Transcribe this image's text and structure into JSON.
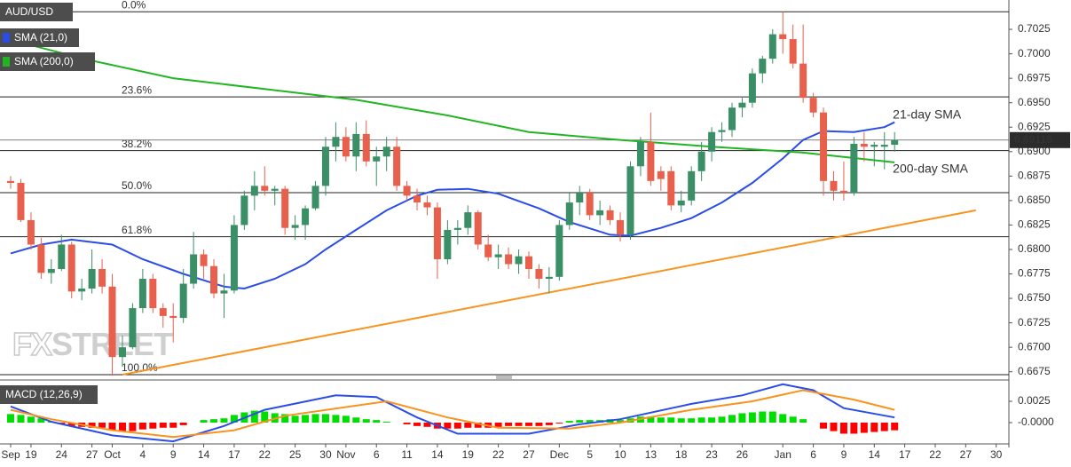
{
  "chart_data": {
    "type": "candlestick",
    "title": "AUD/USD",
    "xlim": [
      -1.05,
      98.25
    ],
    "xticks": [
      {
        "value": 0,
        "label": "Sep"
      },
      {
        "value": 2,
        "label": "19"
      },
      {
        "value": 5,
        "label": "24"
      },
      {
        "value": 8,
        "label": "27"
      },
      {
        "value": 10,
        "label": "Oct"
      },
      {
        "value": 13,
        "label": "4"
      },
      {
        "value": 16,
        "label": "9"
      },
      {
        "value": 19,
        "label": "14"
      },
      {
        "value": 22,
        "label": "17"
      },
      {
        "value": 25,
        "label": "22"
      },
      {
        "value": 28,
        "label": "25"
      },
      {
        "value": 31,
        "label": "30"
      },
      {
        "value": 33,
        "label": "Nov"
      },
      {
        "value": 36,
        "label": "6"
      },
      {
        "value": 39,
        "label": "11"
      },
      {
        "value": 42,
        "label": "14"
      },
      {
        "value": 45,
        "label": "19"
      },
      {
        "value": 48,
        "label": "22"
      },
      {
        "value": 51,
        "label": "27"
      },
      {
        "value": 54,
        "label": "Dec"
      },
      {
        "value": 57,
        "label": "5"
      },
      {
        "value": 60,
        "label": "10"
      },
      {
        "value": 63,
        "label": "13"
      },
      {
        "value": 66,
        "label": "18"
      },
      {
        "value": 69,
        "label": "23"
      },
      {
        "value": 72,
        "label": "26"
      },
      {
        "value": 76,
        "label": "Jan"
      },
      {
        "value": 79,
        "label": "6"
      },
      {
        "value": 82,
        "label": "9"
      },
      {
        "value": 85,
        "label": "14"
      },
      {
        "value": 88,
        "label": "17"
      },
      {
        "value": 91,
        "label": "22"
      },
      {
        "value": 94,
        "label": "27"
      },
      {
        "value": 97,
        "label": "30"
      }
    ],
    "ylim": [
      0.6672,
      0.7055
    ],
    "yticks": [
      0.6675,
      {
        "value": 0.67,
        "label": "0.6700"
      },
      0.6725,
      {
        "value": 0.675,
        "label": "0.6750"
      },
      0.6775,
      {
        "value": 0.68,
        "label": "0.6800"
      },
      0.6825,
      {
        "value": 0.685,
        "label": "0.6850"
      },
      0.6875,
      {
        "value": 0.69,
        "label": "0.6900"
      },
      0.6925,
      {
        "value": 0.695,
        "label": "0.6950"
      },
      0.6975,
      {
        "value": 0.7,
        "label": "0.7000"
      },
      0.7025
    ],
    "candles": {
      "up_color": "#3a8f66",
      "down_color": "#e8604c",
      "open": [
        0.687,
        0.6868,
        0.683,
        0.6805,
        0.6776,
        0.678,
        0.6805,
        0.6757,
        0.676,
        0.678,
        0.6762,
        0.669,
        0.67,
        0.674,
        0.677,
        0.674,
        0.6732,
        0.673,
        0.6765,
        0.6795,
        0.6783,
        0.6755,
        0.6758,
        0.6825,
        0.6855,
        0.6865,
        0.686,
        0.6862,
        0.6822,
        0.6825,
        0.6842,
        0.6865,
        0.6905,
        0.6915,
        0.6895,
        0.6918,
        0.689,
        0.6895,
        0.6905,
        0.6865,
        0.6855,
        0.6848,
        0.6843,
        0.679,
        0.682,
        0.6822,
        0.6838,
        0.6805,
        0.6792,
        0.6795,
        0.6785,
        0.6793,
        0.678,
        0.677,
        0.6772,
        0.6825,
        0.6848,
        0.6858,
        0.6835,
        0.684,
        0.683,
        0.6815,
        0.6885,
        0.691,
        0.688,
        0.688,
        0.6845,
        0.685,
        0.688,
        0.69,
        0.692,
        0.6922,
        0.6945,
        0.695,
        0.698,
        0.6995,
        0.702,
        0.7015,
        0.699,
        0.6955,
        0.694,
        0.687,
        0.686,
        0.6858,
        0.6908,
        0.6905,
        0.6905,
        0.6907
      ],
      "high": [
        0.6875,
        0.6872,
        0.6838,
        0.6812,
        0.679,
        0.6815,
        0.6808,
        0.677,
        0.68,
        0.679,
        0.6775,
        0.6712,
        0.6745,
        0.678,
        0.6775,
        0.6745,
        0.6745,
        0.678,
        0.6818,
        0.68,
        0.679,
        0.6775,
        0.6835,
        0.686,
        0.688,
        0.6885,
        0.6865,
        0.6865,
        0.6835,
        0.6845,
        0.687,
        0.6915,
        0.693,
        0.6925,
        0.693,
        0.6932,
        0.6905,
        0.6915,
        0.6915,
        0.687,
        0.6862,
        0.6855,
        0.6848,
        0.683,
        0.683,
        0.6845,
        0.684,
        0.6815,
        0.6805,
        0.6802,
        0.68,
        0.6798,
        0.6785,
        0.6782,
        0.683,
        0.6858,
        0.6865,
        0.6862,
        0.685,
        0.6845,
        0.6838,
        0.689,
        0.6915,
        0.694,
        0.6885,
        0.6885,
        0.686,
        0.6885,
        0.691,
        0.6925,
        0.693,
        0.695,
        0.6955,
        0.6985,
        0.6998,
        0.7025,
        0.7043,
        0.703,
        0.703,
        0.696,
        0.6945,
        0.688,
        0.689,
        0.6915,
        0.692,
        0.691,
        0.692,
        0.692
      ],
      "low": [
        0.6862,
        0.6828,
        0.68,
        0.677,
        0.6765,
        0.6778,
        0.675,
        0.6748,
        0.6755,
        0.6755,
        0.6671,
        0.668,
        0.6698,
        0.6735,
        0.6735,
        0.672,
        0.6705,
        0.6725,
        0.676,
        0.677,
        0.675,
        0.673,
        0.6755,
        0.682,
        0.684,
        0.6855,
        0.6845,
        0.6815,
        0.681,
        0.681,
        0.684,
        0.6855,
        0.689,
        0.689,
        0.688,
        0.6885,
        0.6865,
        0.688,
        0.686,
        0.685,
        0.684,
        0.6835,
        0.677,
        0.6785,
        0.6805,
        0.6815,
        0.68,
        0.6788,
        0.678,
        0.678,
        0.6775,
        0.677,
        0.676,
        0.6755,
        0.6768,
        0.682,
        0.6835,
        0.683,
        0.6825,
        0.6825,
        0.6808,
        0.681,
        0.6875,
        0.6865,
        0.686,
        0.684,
        0.6838,
        0.6845,
        0.687,
        0.689,
        0.691,
        0.6915,
        0.6935,
        0.6945,
        0.697,
        0.699,
        0.7,
        0.6985,
        0.695,
        0.6935,
        0.6855,
        0.685,
        0.685,
        0.6855,
        0.689,
        0.6885,
        0.6882,
        0.69
      ],
      "close": [
        0.6868,
        0.683,
        0.6805,
        0.6776,
        0.678,
        0.6805,
        0.6757,
        0.676,
        0.678,
        0.6762,
        0.669,
        0.67,
        0.674,
        0.677,
        0.674,
        0.6732,
        0.673,
        0.6765,
        0.6795,
        0.6783,
        0.6755,
        0.6758,
        0.6825,
        0.6855,
        0.6865,
        0.686,
        0.6862,
        0.6822,
        0.6825,
        0.6842,
        0.6865,
        0.6905,
        0.6915,
        0.6895,
        0.6918,
        0.689,
        0.6895,
        0.6905,
        0.6865,
        0.6855,
        0.6848,
        0.6843,
        0.679,
        0.682,
        0.6822,
        0.6838,
        0.6805,
        0.6792,
        0.6795,
        0.6785,
        0.6793,
        0.678,
        0.677,
        0.6772,
        0.6825,
        0.6848,
        0.6858,
        0.6835,
        0.684,
        0.683,
        0.6815,
        0.6885,
        0.691,
        0.687,
        0.6872,
        0.6845,
        0.685,
        0.688,
        0.69,
        0.692,
        0.6922,
        0.6945,
        0.695,
        0.698,
        0.6995,
        0.702,
        0.7015,
        0.699,
        0.6955,
        0.694,
        0.687,
        0.686,
        0.6858,
        0.6908,
        0.6905,
        0.6907,
        0.6907,
        0.69118
      ]
    },
    "series": [
      {
        "name": "SMA (21,0)",
        "label": "21-day SMA",
        "color": "#2a4de8",
        "x": [
          0,
          3,
          6,
          10,
          13,
          17,
          21,
          23,
          26,
          29,
          31,
          34,
          37,
          40,
          42,
          45,
          48,
          52,
          55,
          59,
          61,
          64,
          67,
          70,
          73,
          76,
          78,
          80,
          83,
          86,
          87
        ],
        "values": [
          0.6796,
          0.6805,
          0.681,
          0.6805,
          0.679,
          0.6775,
          0.6762,
          0.676,
          0.677,
          0.6785,
          0.68,
          0.682,
          0.684,
          0.6855,
          0.6861,
          0.6862,
          0.6857,
          0.6842,
          0.6828,
          0.6815,
          0.6814,
          0.6822,
          0.6832,
          0.6848,
          0.6868,
          0.6893,
          0.6912,
          0.6921,
          0.692,
          0.6925,
          0.693
        ]
      },
      {
        "name": "SMA (200,0)",
        "label": "200-day SMA",
        "color": "#22b522",
        "x": [
          0,
          8,
          16,
          25,
          34,
          43,
          51,
          60,
          69,
          78,
          87
        ],
        "values": [
          0.7014,
          0.6993,
          0.6975,
          0.6964,
          0.6953,
          0.6937,
          0.692,
          0.6912,
          0.6905,
          0.6899,
          0.6889
        ]
      }
    ],
    "trendline": {
      "color": "#f7931e",
      "x": [
        11,
        95
      ],
      "values": [
        0.6672,
        0.684
      ]
    },
    "fibonacci": [
      {
        "label": "0.0%",
        "value": 0.7043
      },
      {
        "label": "23.6%",
        "value": 0.6956
      },
      {
        "label": "38.2%",
        "value": 0.6901
      },
      {
        "label": "50.0%",
        "value": 0.6858
      },
      {
        "label": "61.8%",
        "value": 0.6813
      },
      {
        "label": "100.0%",
        "value": 0.6672
      }
    ],
    "last_price": 0.69118,
    "watermark": [
      "FX",
      "STREET"
    ],
    "macd": {
      "name": "MACD (12,26,9)",
      "ylim": [
        -0.0025,
        0.005
      ],
      "yticks": [
        {
          "value": 0,
          "label": "-0.0000"
        },
        0.0025
      ],
      "histogram": {
        "up_color": "#00dd00",
        "down_color": "#ff0000",
        "values": [
          0.001,
          0.0009,
          0.0007,
          0.0005,
          0.0001,
          -0.0002,
          -0.0004,
          -0.0005,
          -0.0006,
          -0.0006,
          -0.0009,
          -0.001,
          -0.001,
          -0.0008,
          -0.0007,
          -0.0006,
          -0.0006,
          -0.0003,
          0.0,
          0.0003,
          0.0004,
          0.0005,
          0.0009,
          0.0012,
          0.0014,
          0.0013,
          0.0011,
          0.001,
          0.0008,
          0.0009,
          0.001,
          0.001,
          0.0009,
          0.0008,
          0.0006,
          0.0004,
          0.0003,
          0.0001,
          0.0,
          -0.0002,
          -0.0004,
          -0.0005,
          -0.0007,
          -0.0007,
          -0.0007,
          -0.0006,
          -0.0006,
          -0.0006,
          -0.0005,
          -0.0004,
          -0.0004,
          -0.0004,
          -0.0004,
          -0.0003,
          -0.0001,
          0.0002,
          0.0003,
          0.0003,
          0.0003,
          0.0004,
          0.0003,
          0.0005,
          0.0007,
          0.0007,
          0.0006,
          0.0006,
          0.0005,
          0.0005,
          0.0006,
          0.0006,
          0.0007,
          0.0009,
          0.0011,
          0.0012,
          0.0013,
          0.0013,
          0.001,
          0.0007,
          0.0004,
          0.0,
          -0.0007,
          -0.001,
          -0.0013,
          -0.0013,
          -0.0012,
          -0.0011,
          -0.001,
          -0.0009
        ]
      },
      "series": [
        {
          "color": "#2a4de8",
          "x": [
            0,
            4,
            10,
            16,
            21,
            25,
            32,
            36,
            40,
            44,
            51,
            56,
            60,
            67,
            72,
            76,
            79,
            82,
            87
          ],
          "values": [
            0.0019,
            0.0001,
            -0.0015,
            -0.0022,
            -0.0004,
            0.0015,
            0.0032,
            0.003,
            0.0006,
            -0.0013,
            -0.0013,
            -0.0002,
            0.0004,
            0.0022,
            0.0032,
            0.0045,
            0.0038,
            0.0017,
            0.0006
          ]
        },
        {
          "color": "#f7931e",
          "x": [
            0,
            4,
            10,
            16,
            22,
            27,
            37,
            43,
            48,
            55,
            60,
            67,
            73,
            78,
            83,
            87
          ],
          "values": [
            0.0015,
            0.0004,
            -0.0009,
            -0.0017,
            -0.0009,
            0.0008,
            0.0025,
            0.0006,
            -0.0006,
            -0.0007,
            0,
            0.0015,
            0.0025,
            0.0038,
            0.0027,
            0.0015
          ]
        }
      ]
    }
  }
}
